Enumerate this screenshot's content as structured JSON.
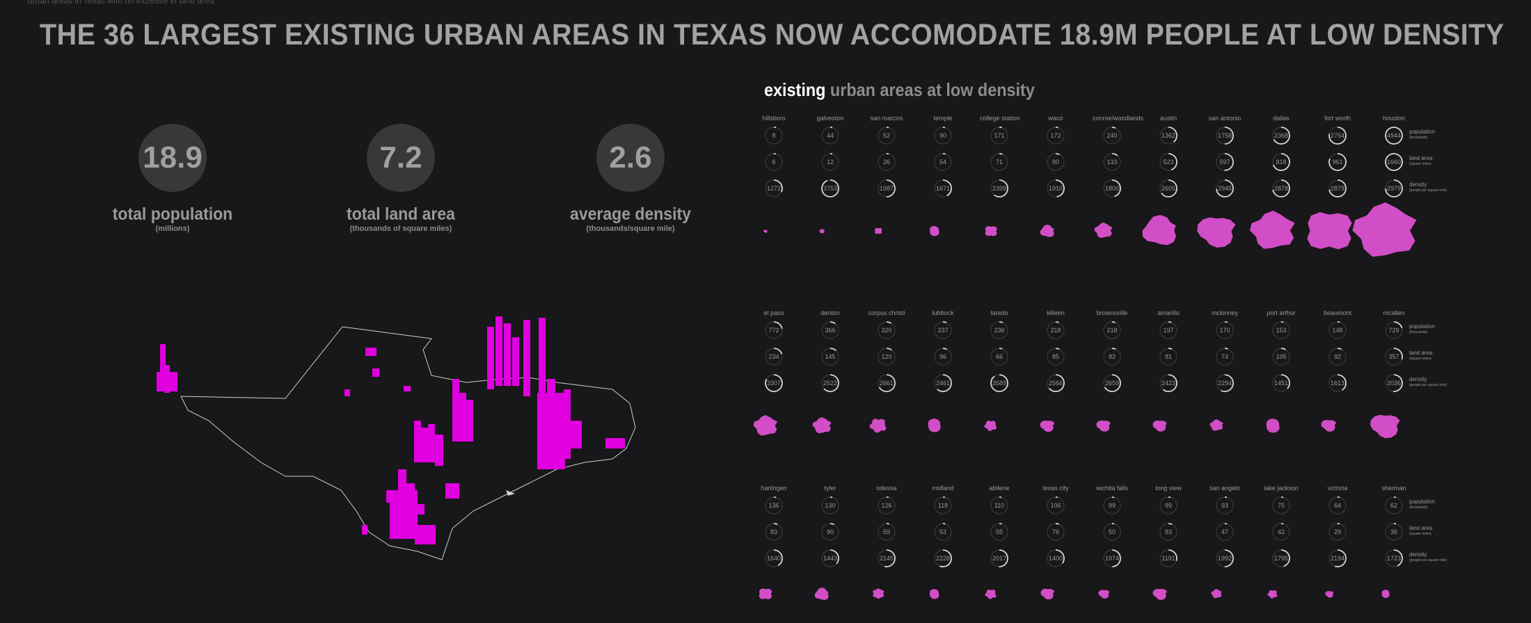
{
  "top_strip": "urban areas in Texas with no increase in land area",
  "headline": "THE 36 LARGEST EXISTING URBAN AREAS IN TEXAS NOW ACCOMODATE 18.9M PEOPLE AT LOW DENSITY",
  "kpis": [
    {
      "value": "18.9",
      "label": "total population",
      "sub": "(millions)"
    },
    {
      "value": "7.2",
      "label": "total land area",
      "sub": "(thousands of square miles)"
    },
    {
      "value": "2.6",
      "label": "average density",
      "sub": "(thousands/square mile)"
    }
  ],
  "right_title": {
    "highlight": "existing",
    "rest": "urban areas at low density"
  },
  "metric_labels": [
    {
      "name": "population",
      "unit": "(thousands)"
    },
    {
      "name": "land area",
      "unit": "(square miles)"
    },
    {
      "name": "density",
      "unit": "(people per square mile)"
    }
  ],
  "colors": {
    "accent": "#e000e0",
    "blob": "#d14ec6",
    "ring": "#d8d8d8"
  },
  "rows": [
    [
      {
        "name": "hillsboro",
        "pop": 8,
        "area": 6,
        "density": 1272
      },
      {
        "name": "galveston",
        "pop": 44,
        "area": 12,
        "density": 3753
      },
      {
        "name": "san marcos",
        "pop": 52,
        "area": 26,
        "density": 1987
      },
      {
        "name": "temple",
        "pop": 90,
        "area": 54,
        "density": 1671
      },
      {
        "name": "college station",
        "pop": 171,
        "area": 71,
        "density": 2399
      },
      {
        "name": "waco",
        "pop": 172,
        "area": 90,
        "density": 1910
      },
      {
        "name": "conroe/woodlands",
        "pop": 240,
        "area": 133,
        "density": 1800
      },
      {
        "name": "austin",
        "pop": 1362,
        "area": 523,
        "density": 2605
      },
      {
        "name": "san antonio",
        "pop": 1758,
        "area": 597,
        "density": 2945
      },
      {
        "name": "dallas",
        "pop": 2368,
        "area": 818,
        "density": 2878
      },
      {
        "name": "fort worth",
        "pop": 2754,
        "area": 961,
        "density": 2879
      },
      {
        "name": "houston",
        "pop": 4944,
        "area": 1660,
        "density": 2979
      }
    ],
    [
      {
        "name": "el paso",
        "pop": 772,
        "area": 234,
        "density": 3307
      },
      {
        "name": "denton",
        "pop": 366,
        "area": 145,
        "density": 2522
      },
      {
        "name": "corpus christi",
        "pop": 320,
        "area": 120,
        "density": 2661
      },
      {
        "name": "lubbock",
        "pop": 237,
        "area": 96,
        "density": 2461
      },
      {
        "name": "laredo",
        "pop": 236,
        "area": 66,
        "density": 3589
      },
      {
        "name": "killeen",
        "pop": 218,
        "area": 85,
        "density": 2566
      },
      {
        "name": "brownsville",
        "pop": 218,
        "area": 82,
        "density": 2659
      },
      {
        "name": "amarillo",
        "pop": 197,
        "area": 81,
        "density": 2423
      },
      {
        "name": "mckinney",
        "pop": 170,
        "area": 74,
        "density": 2294
      },
      {
        "name": "port arthur",
        "pop": 153,
        "area": 105,
        "density": 1451
      },
      {
        "name": "beaumont",
        "pop": 148,
        "area": 92,
        "density": 1613
      },
      {
        "name": "mcallen",
        "pop": 729,
        "area": 357,
        "density": 2036
      }
    ],
    [
      {
        "name": "harlingen",
        "pop": 136,
        "area": 83,
        "density": 1640
      },
      {
        "name": "tyler",
        "pop": 130,
        "area": 90,
        "density": 1443
      },
      {
        "name": "odessa",
        "pop": 126,
        "area": 59,
        "density": 2145
      },
      {
        "name": "midland",
        "pop": 118,
        "area": 53,
        "density": 2228
      },
      {
        "name": "abilene",
        "pop": 110,
        "area": 55,
        "density": 2017
      },
      {
        "name": "texas city",
        "pop": 106,
        "area": 76,
        "density": 1400
      },
      {
        "name": "wichita falls",
        "pop": 99,
        "area": 50,
        "density": 1974
      },
      {
        "name": "long view",
        "pop": 99,
        "area": 83,
        "density": 1191
      },
      {
        "name": "san angelo",
        "pop": 93,
        "area": 47,
        "density": 1992
      },
      {
        "name": "lake jackson",
        "pop": 75,
        "area": 42,
        "density": 1795
      },
      {
        "name": "victoria",
        "pop": 64,
        "area": 29,
        "density": 2194
      },
      {
        "name": "sherman",
        "pop": 62,
        "area": 36,
        "density": 1723
      }
    ]
  ]
}
